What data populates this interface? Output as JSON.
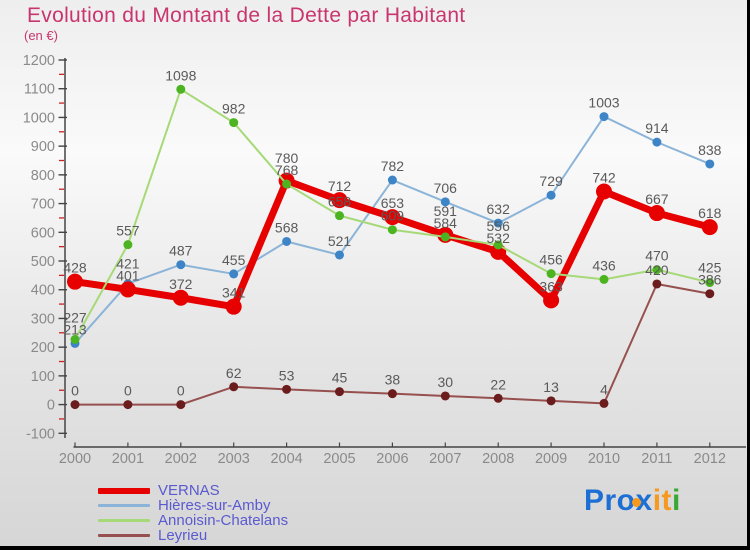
{
  "header": {
    "title": "Evolution du Montant de la Dette par Habitant",
    "subtitle": "(en €)"
  },
  "chart_data": {
    "type": "line",
    "title": "Evolution du Montant de la Dette par Habitant",
    "unit": "(en €)",
    "x": [
      2000,
      2001,
      2002,
      2003,
      2004,
      2005,
      2006,
      2007,
      2008,
      2009,
      2010,
      2011,
      2012
    ],
    "ylim": [
      -100,
      1200
    ],
    "yticks": [
      1200,
      1100,
      1000,
      900,
      800,
      700,
      600,
      500,
      400,
      300,
      200,
      100,
      0,
      -100
    ],
    "grid": false,
    "legend_position": "bottom-left",
    "label_color": "#5a5a5a",
    "axis_color": "#444444",
    "tick_label_color": "#8a8a8a",
    "minor_tick_color": "#cc2222",
    "series": [
      {
        "name": "VERNAS",
        "line_color": "#e60000",
        "dot_color": "#e60000",
        "line_width": 7,
        "dot_radius": 8,
        "values": [
          428,
          401,
          372,
          341,
          780,
          712,
          653,
          591,
          532,
          363,
          742,
          667,
          618
        ]
      },
      {
        "name": "Hières-sur-Amby",
        "line_color": "#8bb4d8",
        "dot_color": "#3d85c6",
        "line_width": 2,
        "dot_radius": 4.5,
        "values": [
          213,
          421,
          487,
          455,
          568,
          521,
          782,
          706,
          632,
          729,
          1003,
          914,
          838
        ]
      },
      {
        "name": "Annoisin-Chatelans",
        "line_color": "#a6d977",
        "dot_color": "#4cb321",
        "line_width": 2,
        "dot_radius": 4.5,
        "values": [
          227,
          557,
          1098,
          982,
          768,
          658,
          609,
          584,
          556,
          456,
          436,
          470,
          425
        ]
      },
      {
        "name": "Leyrieu",
        "line_color": "#96504f",
        "dot_color": "#6b1d1d",
        "line_width": 2,
        "dot_radius": 4.5,
        "values": [
          0,
          0,
          0,
          62,
          53,
          45,
          38,
          30,
          22,
          13,
          4,
          420,
          386
        ]
      }
    ]
  },
  "legend": {
    "items": [
      {
        "label": "VERNAS",
        "color": "#e60000",
        "thickness": 6
      },
      {
        "label": "Hières-sur-Amby",
        "color": "#8bb4d8",
        "thickness": 3
      },
      {
        "label": "Annoisin-Chatelans",
        "color": "#a6d977",
        "thickness": 3
      },
      {
        "label": "Leyrieu",
        "color": "#96504f",
        "thickness": 3
      }
    ]
  },
  "logo": {
    "parts": [
      {
        "text": "Pro",
        "color": "#1e6fd4"
      },
      {
        "text": "x",
        "color": "#1e6fd4"
      },
      {
        "text": "i",
        "color": "#f59a1e"
      },
      {
        "text": "t",
        "color": "#f59a1e"
      },
      {
        "text": "i",
        "color": "#3aa834"
      }
    ]
  }
}
